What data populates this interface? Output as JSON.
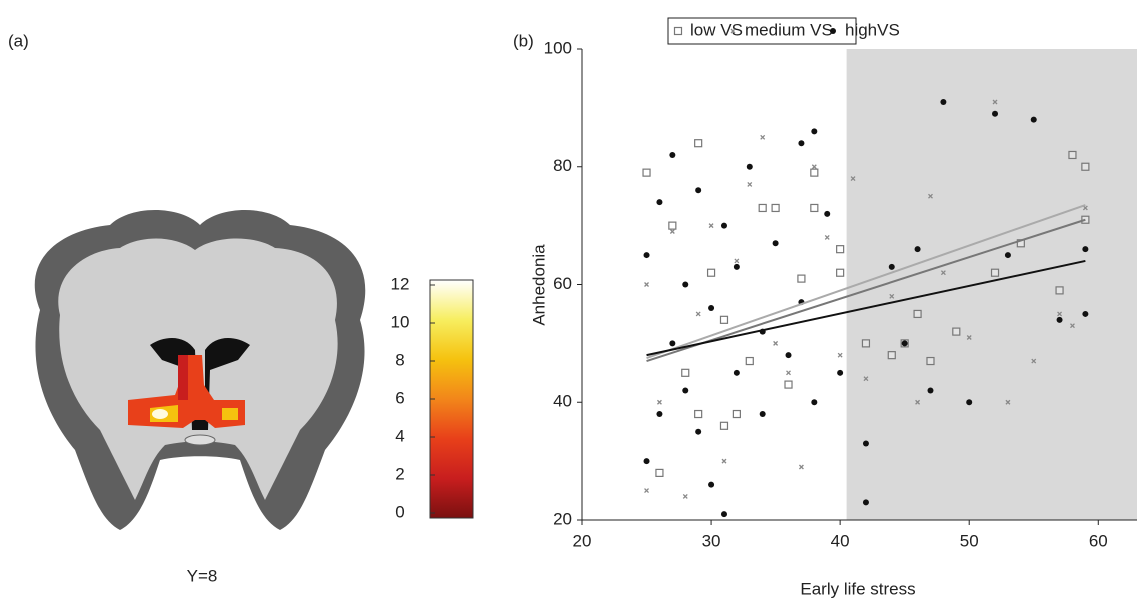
{
  "chart_data": [
    {
      "type": "image",
      "panel_label": "(a)",
      "caption": "Y=8",
      "colorbar": {
        "ylim": [
          0,
          12
        ],
        "yticks": [
          0,
          2,
          4,
          6,
          8,
          10,
          12
        ],
        "colors": [
          "#7a1010",
          "#c81e1e",
          "#e8401a",
          "#f2861a",
          "#f5c20f",
          "#f7ee60",
          "#ffffff"
        ]
      }
    },
    {
      "type": "scatter",
      "panel_label": "(b)",
      "x_label": "Early life stress",
      "y_label": "Anhedonia",
      "xlim": [
        20,
        63
      ],
      "xticks": [
        20,
        30,
        40,
        50,
        60
      ],
      "ylim": [
        20,
        100
      ],
      "yticks": [
        20,
        40,
        60,
        80,
        100
      ],
      "shaded_x": [
        40.5,
        63
      ],
      "shade_color": "#d9d9d9",
      "series": [
        {
          "name": "low VS",
          "color": "#777777",
          "marker": "square",
          "x": [
            25,
            26,
            27,
            28,
            29,
            29,
            30,
            31,
            31,
            32,
            33,
            34,
            35,
            36,
            37,
            38,
            38,
            40,
            40,
            42,
            44,
            45,
            46,
            47,
            49,
            52,
            54,
            57,
            58,
            59,
            59
          ],
          "values": [
            79,
            28,
            70,
            45,
            84,
            38,
            62,
            36,
            54,
            38,
            47,
            73,
            73,
            43,
            61,
            79,
            73,
            66,
            62,
            50,
            48,
            50,
            55,
            47,
            52,
            62,
            67,
            59,
            82,
            80,
            71
          ],
          "trend": {
            "x": [
              25,
              59
            ],
            "values": [
              47,
              71
            ]
          }
        },
        {
          "name": "medium VS",
          "color": "#888888",
          "marker": "cross",
          "x": [
            25,
            25,
            26,
            27,
            28,
            29,
            30,
            31,
            32,
            33,
            34,
            35,
            36,
            37,
            38,
            39,
            40,
            41,
            42,
            44,
            46,
            47,
            48,
            50,
            52,
            53,
            55,
            57,
            58,
            59
          ],
          "values": [
            25,
            60,
            40,
            69,
            24,
            55,
            70,
            30,
            64,
            77,
            85,
            50,
            45,
            29,
            80,
            68,
            48,
            78,
            44,
            58,
            40,
            75,
            62,
            51,
            91,
            40,
            47,
            55,
            53,
            73
          ],
          "trend": {
            "x": [
              25,
              59
            ],
            "values": [
              47.5,
              73.5
            ]
          },
          "trend_color": "#aaaaaa"
        },
        {
          "name": "highVS",
          "color": "#111111",
          "marker": "circle",
          "x": [
            25,
            25,
            26,
            26,
            27,
            27,
            28,
            28,
            29,
            29,
            30,
            30,
            31,
            31,
            32,
            32,
            33,
            34,
            34,
            35,
            36,
            37,
            37,
            38,
            38,
            39,
            40,
            42,
            42,
            44,
            45,
            46,
            47,
            48,
            50,
            52,
            53,
            55,
            57,
            59,
            59
          ],
          "values": [
            30,
            65,
            74,
            38,
            82,
            50,
            42,
            60,
            35,
            76,
            26,
            56,
            21,
            70,
            45,
            63,
            80,
            52,
            38,
            67,
            48,
            84,
            57,
            86,
            40,
            72,
            45,
            23,
            33,
            63,
            50,
            66,
            42,
            91,
            40,
            89,
            65,
            88,
            54,
            55,
            66
          ],
          "trend": {
            "x": [
              25,
              59
            ],
            "values": [
              48,
              64
            ]
          }
        }
      ]
    }
  ]
}
